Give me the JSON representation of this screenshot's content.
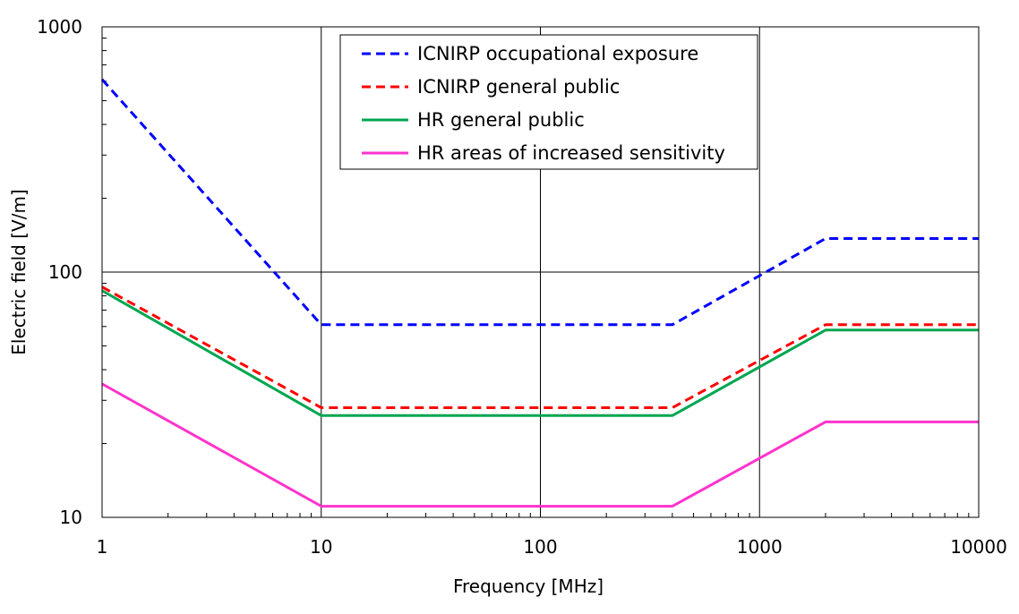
{
  "chart_data": {
    "type": "line",
    "title": "",
    "xlabel": "Frequency [MHz]",
    "ylabel": "Electric field [V/m]",
    "xscale": "log",
    "yscale": "log",
    "xlim": [
      1,
      10000
    ],
    "ylim": [
      10,
      1000
    ],
    "x_ticks": [
      "1",
      "10",
      "100",
      "1000",
      "10000"
    ],
    "y_ticks": [
      "10",
      "100",
      "1000"
    ],
    "grid": "major",
    "legend_position": "top-center",
    "series": [
      {
        "name": "ICNIRP occupational exposure",
        "color": "#0000ff",
        "dash": "dashed",
        "points": [
          [
            1,
            610
          ],
          [
            10,
            61
          ],
          [
            400,
            61
          ],
          [
            2000,
            137
          ],
          [
            10000,
            137
          ]
        ]
      },
      {
        "name": "ICNIRP general public",
        "color": "#ff0000",
        "dash": "dashed",
        "points": [
          [
            1,
            87
          ],
          [
            10,
            28
          ],
          [
            400,
            28
          ],
          [
            2000,
            61
          ],
          [
            10000,
            61
          ]
        ]
      },
      {
        "name": "HR general public",
        "color": "#00a651",
        "dash": "solid",
        "points": [
          [
            1,
            84
          ],
          [
            10,
            26
          ],
          [
            400,
            26
          ],
          [
            2000,
            58
          ],
          [
            10000,
            58
          ]
        ]
      },
      {
        "name": "HR areas of increased sensitivity",
        "color": "#ff33cc",
        "dash": "solid",
        "points": [
          [
            1,
            35
          ],
          [
            10,
            11.1
          ],
          [
            400,
            11.1
          ],
          [
            2000,
            24.5
          ],
          [
            10000,
            24.5
          ]
        ]
      }
    ]
  }
}
